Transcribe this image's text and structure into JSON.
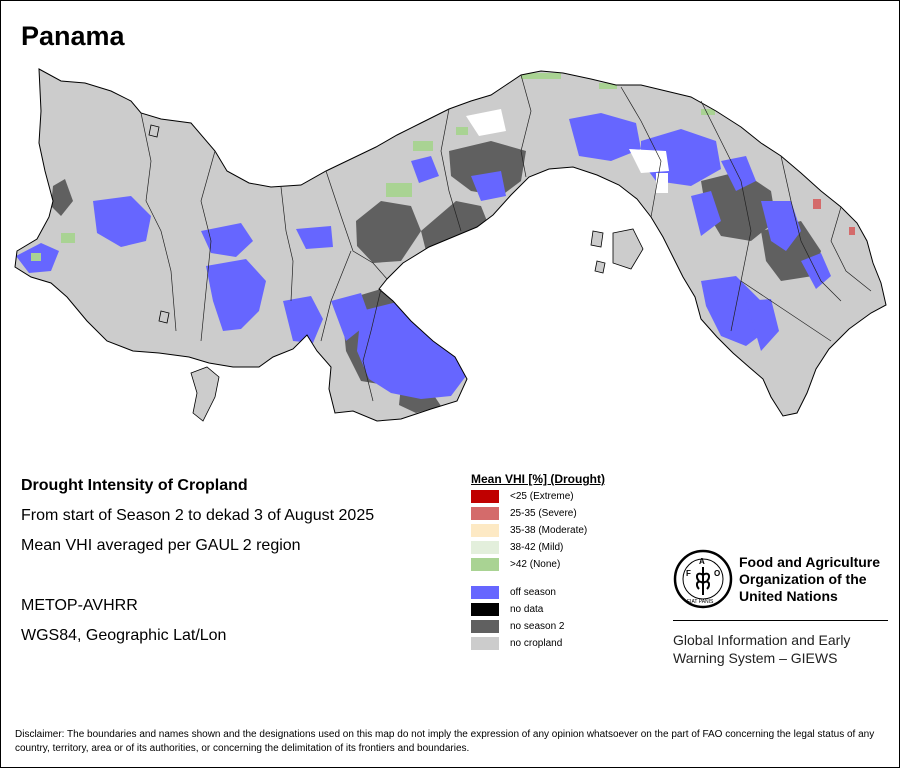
{
  "map": {
    "title": "Panama",
    "info": {
      "heading": "Drought Intensity of Cropland",
      "line1": "From start of Season 2 to dekad 3 of August 2025",
      "line2": "Mean VHI averaged per GAUL 2 region",
      "sensor": "METOP-AVHRR",
      "projection": "WGS84, Geographic Lat/Lon"
    },
    "legend": {
      "title": "Mean VHI [%] (Drought)",
      "drought_classes": [
        {
          "label": "<25    (Extreme)",
          "color": "#c00000"
        },
        {
          "label": "25-35 (Severe)",
          "color": "#d46b6b"
        },
        {
          "label": "35-38 (Moderate)",
          "color": "#fde9c4"
        },
        {
          "label": "38-42 (Mild)",
          "color": "#e3efdc"
        },
        {
          "label": ">42    (None)",
          "color": "#a9d393"
        }
      ],
      "other_classes": [
        {
          "label": "off season",
          "color": "#6666ff"
        },
        {
          "label": "no data",
          "color": "#000000"
        },
        {
          "label": "no season 2",
          "color": "#606060"
        },
        {
          "label": "no cropland",
          "color": "#cccccc"
        }
      ]
    },
    "organization": {
      "name_line1": "Food and Agriculture",
      "name_line2": "Organization of the",
      "name_line3": "United Nations",
      "system_line1": "Global Information and Early",
      "system_line2": "Warning System – GIEWS",
      "logo_text": "FAO",
      "logo_motto": "FIAT PANIS"
    },
    "disclaimer": "Disclaimer: The boundaries and names shown and the designations used on this map do not imply the expression of any opinion whatsoever on the part of FAO concerning the legal status of any country, territory, area or of its authorities, or concerning the delimitation of its frontiers and boundaries.",
    "colors": {
      "no_cropland": "#cccccc",
      "off_season": "#6666ff",
      "no_season_2": "#606060",
      "none_drought": "#a9d393",
      "outline": "#000000"
    }
  }
}
